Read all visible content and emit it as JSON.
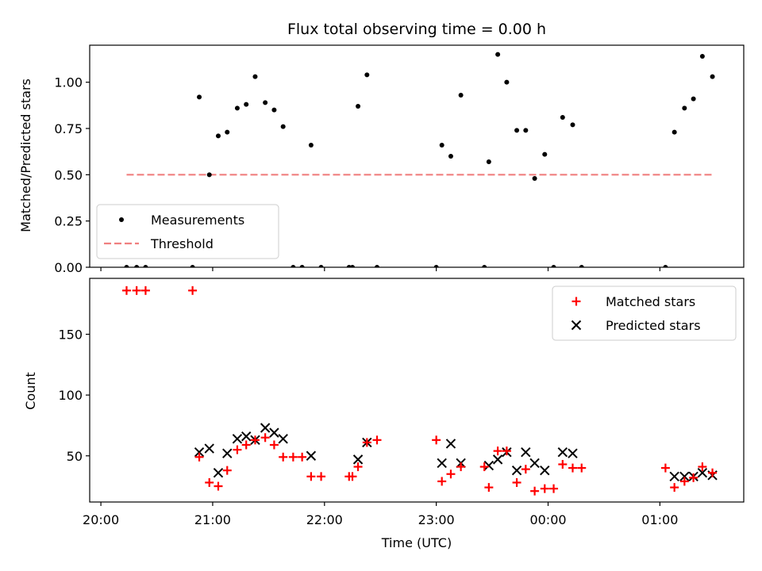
{
  "chart_data": [
    {
      "type": "scatter",
      "title": "Flux total observing time = 0.00 h",
      "xlabel": "",
      "ylabel": "Matched/Predicted stars",
      "xlim": [
        -0.1,
        5.75
      ],
      "ylim": [
        0,
        1.2
      ],
      "yticks": [
        0,
        0.25,
        0.5,
        0.75,
        1.0
      ],
      "ytick_labels": [
        "0.00",
        "0.25",
        "0.50",
        "0.75",
        "1.00"
      ],
      "legend_position": "lower-left",
      "series": [
        {
          "name": "Measurements",
          "kind": "points",
          "color": "#000000",
          "points": [
            [
              0.23,
              0
            ],
            [
              0.32,
              0
            ],
            [
              0.4,
              0
            ],
            [
              0.82,
              0
            ],
            [
              0.88,
              0.92
            ],
            [
              0.97,
              0.5
            ],
            [
              1.05,
              0.71
            ],
            [
              1.13,
              0.73
            ],
            [
              1.22,
              0.86
            ],
            [
              1.3,
              0.88
            ],
            [
              1.38,
              1.03
            ],
            [
              1.47,
              0.89
            ],
            [
              1.55,
              0.85
            ],
            [
              1.63,
              0.76
            ],
            [
              1.72,
              0
            ],
            [
              1.8,
              0
            ],
            [
              1.88,
              0.66
            ],
            [
              1.97,
              0
            ],
            [
              2.22,
              0
            ],
            [
              2.25,
              0
            ],
            [
              2.3,
              0.87
            ],
            [
              2.38,
              1.04
            ],
            [
              2.47,
              0
            ],
            [
              3.0,
              0
            ],
            [
              3.05,
              0.66
            ],
            [
              3.13,
              0.6
            ],
            [
              3.22,
              0.93
            ],
            [
              3.43,
              0
            ],
            [
              3.47,
              0.57
            ],
            [
              3.55,
              1.15
            ],
            [
              3.63,
              1.0
            ],
            [
              3.72,
              0.74
            ],
            [
              3.8,
              0.74
            ],
            [
              3.88,
              0.48
            ],
            [
              3.97,
              0.61
            ],
            [
              4.05,
              0
            ],
            [
              4.13,
              0.81
            ],
            [
              4.22,
              0.77
            ],
            [
              4.3,
              0
            ],
            [
              5.05,
              0
            ],
            [
              5.13,
              0.73
            ],
            [
              5.22,
              0.86
            ],
            [
              5.3,
              0.91
            ],
            [
              5.38,
              1.14
            ],
            [
              5.47,
              1.03
            ]
          ]
        },
        {
          "name": "Threshold",
          "kind": "dashed-line",
          "color": "#f08080",
          "points": [
            [
              0.23,
              0.5
            ],
            [
              5.47,
              0.5
            ]
          ]
        }
      ]
    },
    {
      "type": "scatter",
      "xlabel": "Time (UTC)",
      "ylabel": "Count",
      "xlim": [
        -0.1,
        5.75
      ],
      "ylim": [
        12,
        196
      ],
      "yticks": [
        50,
        100,
        150
      ],
      "ytick_labels": [
        "50",
        "100",
        "150"
      ],
      "xticks": [
        0,
        1,
        2,
        3,
        4,
        5
      ],
      "xtick_labels": [
        "20:00",
        "21:00",
        "22:00",
        "23:00",
        "00:00",
        "01:00"
      ],
      "legend_position": "top-right",
      "series": [
        {
          "name": "Matched stars",
          "marker": "plus",
          "color": "#ff0000",
          "points": [
            [
              0.23,
              186
            ],
            [
              0.32,
              186
            ],
            [
              0.4,
              186
            ],
            [
              0.82,
              186
            ],
            [
              0.88,
              49
            ],
            [
              0.97,
              28
            ],
            [
              1.05,
              25
            ],
            [
              1.13,
              38
            ],
            [
              1.22,
              55
            ],
            [
              1.3,
              59
            ],
            [
              1.38,
              63
            ],
            [
              1.47,
              65
            ],
            [
              1.55,
              59
            ],
            [
              1.63,
              49
            ],
            [
              1.72,
              49
            ],
            [
              1.8,
              49
            ],
            [
              1.88,
              33
            ],
            [
              1.97,
              33
            ],
            [
              2.22,
              33
            ],
            [
              2.25,
              33
            ],
            [
              2.3,
              41
            ],
            [
              2.38,
              61
            ],
            [
              2.47,
              63
            ],
            [
              3.0,
              63
            ],
            [
              3.05,
              29
            ],
            [
              3.13,
              35
            ],
            [
              3.22,
              41
            ],
            [
              3.43,
              41
            ],
            [
              3.47,
              24
            ],
            [
              3.55,
              54
            ],
            [
              3.63,
              54
            ],
            [
              3.72,
              28
            ],
            [
              3.8,
              39
            ],
            [
              3.88,
              21
            ],
            [
              3.97,
              23
            ],
            [
              4.05,
              23
            ],
            [
              4.13,
              43
            ],
            [
              4.22,
              40
            ],
            [
              4.3,
              40
            ],
            [
              5.05,
              40
            ],
            [
              5.13,
              24
            ],
            [
              5.22,
              29
            ],
            [
              5.3,
              32
            ],
            [
              5.38,
              41
            ],
            [
              5.47,
              36
            ]
          ]
        },
        {
          "name": "Predicted stars",
          "marker": "x",
          "color": "#000000",
          "points": [
            [
              0.88,
              53
            ],
            [
              0.97,
              56
            ],
            [
              1.05,
              36
            ],
            [
              1.13,
              52
            ],
            [
              1.22,
              64
            ],
            [
              1.3,
              66
            ],
            [
              1.38,
              63
            ],
            [
              1.47,
              73
            ],
            [
              1.55,
              69
            ],
            [
              1.63,
              64
            ],
            [
              1.88,
              50
            ],
            [
              2.3,
              47
            ],
            [
              2.38,
              61
            ],
            [
              3.05,
              44
            ],
            [
              3.13,
              60
            ],
            [
              3.22,
              44
            ],
            [
              3.47,
              42
            ],
            [
              3.55,
              47
            ],
            [
              3.63,
              53
            ],
            [
              3.72,
              38
            ],
            [
              3.8,
              53
            ],
            [
              3.88,
              44
            ],
            [
              3.97,
              38
            ],
            [
              4.13,
              53
            ],
            [
              4.22,
              52
            ],
            [
              5.13,
              33
            ],
            [
              5.22,
              33
            ],
            [
              5.3,
              33
            ],
            [
              5.38,
              36
            ],
            [
              5.47,
              34
            ]
          ]
        }
      ]
    }
  ]
}
